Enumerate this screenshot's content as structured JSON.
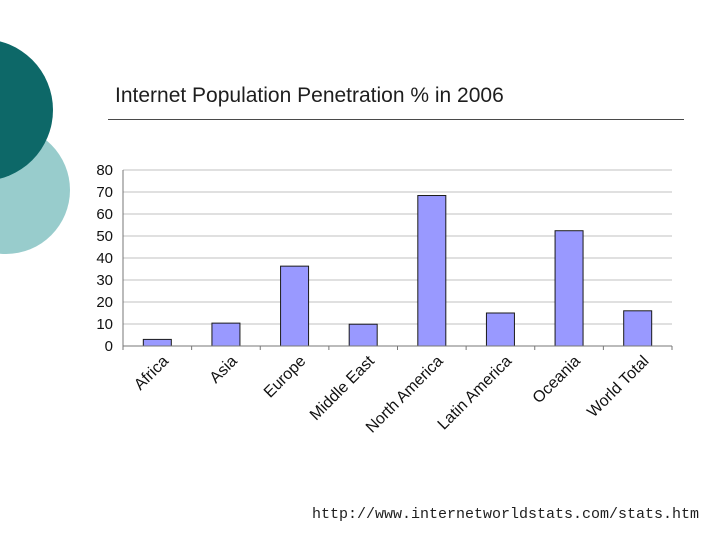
{
  "slide": {
    "title": "Internet Population Penetration % in 2006",
    "source": "http://www.internetworldstats.com/stats.htm"
  },
  "theme": {
    "circle_dark": "#0d6868",
    "circle_light": "#98cccc",
    "bar_fill": "#9999ff",
    "bar_stroke": "#1a1a1a",
    "grid": "#c0c0c0"
  },
  "chart_data": {
    "type": "bar",
    "categories": [
      "Africa",
      "Asia",
      "Europe",
      "Middle East",
      "North America",
      "Latin America",
      "Oceania",
      "World Total"
    ],
    "values": [
      3,
      10.4,
      36.3,
      9.9,
      68.4,
      15,
      52.4,
      16
    ],
    "title": "Internet Population Penetration % in 2006",
    "xlabel": "",
    "ylabel": "",
    "ylim": [
      0,
      80
    ],
    "yticks": [
      0,
      10,
      20,
      30,
      40,
      50,
      60,
      70,
      80
    ],
    "grid": true,
    "legend": "none"
  }
}
